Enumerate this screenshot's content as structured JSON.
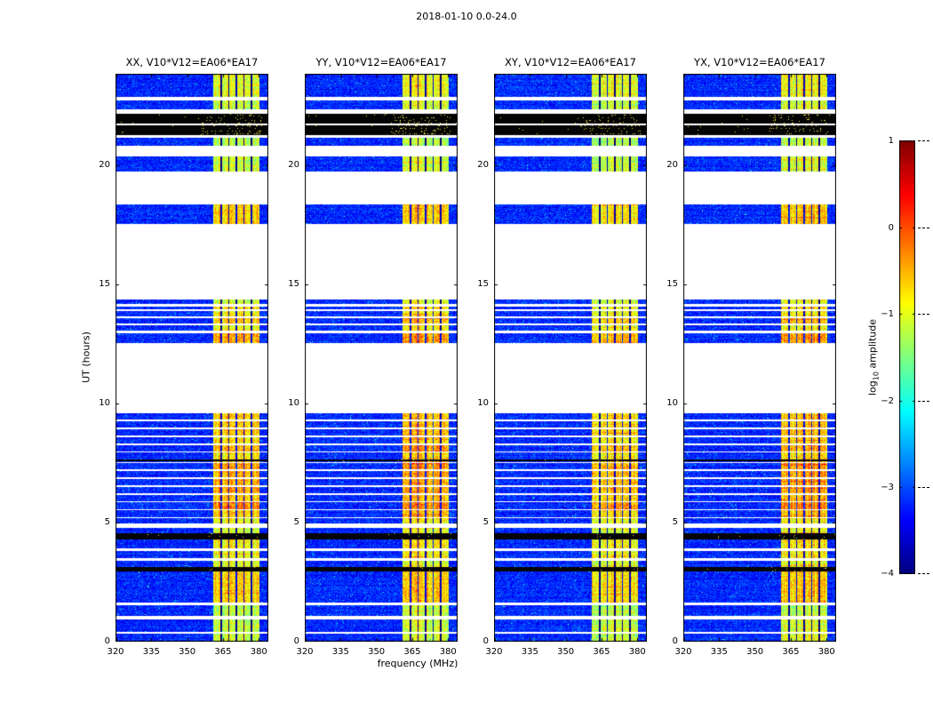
{
  "figure": {
    "title": "2018-01-10 0.0-24.0",
    "xlabel": "frequency (MHz)",
    "ylabel": "UT (hours)"
  },
  "chart_data": {
    "type": "heatmap",
    "title": "2018-01-10 0.0-24.0",
    "xlabel": "frequency (MHz)",
    "ylabel": "UT (hours)",
    "x_range_mhz": [
      320,
      384
    ],
    "y_range_hours": [
      0,
      23.84
    ],
    "x_ticks": [
      320,
      335,
      350,
      365,
      380
    ],
    "y_ticks": [
      0,
      5,
      10,
      15,
      20
    ],
    "colormap": "jet",
    "background_level": -3.2,
    "colorbar": {
      "label": "log10 amplitude",
      "label_main": "log",
      "label_sub": "10",
      "label_rest": " amplitude",
      "ticks": [
        1,
        0,
        -1,
        -2,
        -3,
        -4
      ],
      "range": [
        -4,
        1
      ]
    },
    "panels": [
      {
        "title": "XX, V10*V12=EA06*EA17",
        "band_gain": 1.0
      },
      {
        "title": "YY, V10*V12=EA06*EA17",
        "band_gain": 1.06
      },
      {
        "title": "XY, V10*V12=EA06*EA17",
        "band_gain": 0.94
      },
      {
        "title": "YX, V10*V12=EA06*EA17",
        "band_gain": 1.0
      }
    ],
    "rfi_band_mhz": [
      361,
      380.4
    ],
    "band_separators_mhz": [
      364.2,
      367.4,
      370.6,
      373.8,
      377.0
    ],
    "segments": [
      {
        "t0": 0.0,
        "t1": 0.33,
        "kind": "data",
        "i": 0.55
      },
      {
        "t0": 0.33,
        "t1": 0.41,
        "kind": "white"
      },
      {
        "t0": 0.41,
        "t1": 0.95,
        "kind": "data",
        "i": 0.55
      },
      {
        "t0": 0.95,
        "t1": 1.1,
        "kind": "white"
      },
      {
        "t0": 1.1,
        "t1": 1.52,
        "kind": "data",
        "i": 0.5
      },
      {
        "t0": 1.52,
        "t1": 1.63,
        "kind": "white"
      },
      {
        "t0": 1.63,
        "t1": 2.95,
        "kind": "data",
        "i": 0.75
      },
      {
        "t0": 2.95,
        "t1": 3.12,
        "kind": "black"
      },
      {
        "t0": 3.12,
        "t1": 3.38,
        "kind": "data",
        "i": 0.6
      },
      {
        "t0": 3.38,
        "t1": 3.5,
        "kind": "white"
      },
      {
        "t0": 3.5,
        "t1": 3.82,
        "kind": "data",
        "i": 0.65
      },
      {
        "t0": 3.82,
        "t1": 3.92,
        "kind": "white"
      },
      {
        "t0": 3.92,
        "t1": 4.3,
        "kind": "data",
        "i": 0.7
      },
      {
        "t0": 4.3,
        "t1": 4.56,
        "kind": "black"
      },
      {
        "t0": 4.56,
        "t1": 4.78,
        "kind": "data",
        "i": 0.6
      },
      {
        "t0": 4.78,
        "t1": 4.95,
        "kind": "white"
      },
      {
        "t0": 4.95,
        "t1": 5.18,
        "kind": "data",
        "i": 0.65
      },
      {
        "t0": 5.18,
        "t1": 5.24,
        "kind": "white"
      },
      {
        "t0": 5.24,
        "t1": 7.58,
        "kind": "striped",
        "i": 0.85,
        "row": 0.27,
        "gap": 0.06
      },
      {
        "t0": 7.58,
        "t1": 7.66,
        "kind": "black"
      },
      {
        "t0": 7.66,
        "t1": 9.62,
        "kind": "striped",
        "i": 0.78,
        "row": 0.27,
        "gap": 0.06
      },
      {
        "t0": 9.62,
        "t1": 12.55,
        "kind": "white"
      },
      {
        "t0": 12.55,
        "t1": 12.95,
        "kind": "data",
        "i": 0.85
      },
      {
        "t0": 12.95,
        "t1": 13.04,
        "kind": "white"
      },
      {
        "t0": 13.04,
        "t1": 14.06,
        "kind": "striped",
        "i": 0.72,
        "row": 0.24,
        "gap": 0.06
      },
      {
        "t0": 14.06,
        "t1": 14.16,
        "kind": "white"
      },
      {
        "t0": 14.16,
        "t1": 14.38,
        "kind": "data",
        "i": 0.58
      },
      {
        "t0": 14.38,
        "t1": 17.55,
        "kind": "white"
      },
      {
        "t0": 17.55,
        "t1": 18.36,
        "kind": "data",
        "i": 0.75
      },
      {
        "t0": 18.36,
        "t1": 19.72,
        "kind": "white"
      },
      {
        "t0": 19.72,
        "t1": 20.38,
        "kind": "data",
        "i": 0.55
      },
      {
        "t0": 20.38,
        "t1": 20.8,
        "kind": "white"
      },
      {
        "t0": 20.8,
        "t1": 21.16,
        "kind": "data",
        "i": 0.5
      },
      {
        "t0": 21.16,
        "t1": 21.27,
        "kind": "white"
      },
      {
        "t0": 21.27,
        "t1": 21.68,
        "kind": "black_speckled"
      },
      {
        "t0": 21.68,
        "t1": 21.75,
        "kind": "white"
      },
      {
        "t0": 21.75,
        "t1": 22.16,
        "kind": "black_speckled"
      },
      {
        "t0": 22.16,
        "t1": 22.35,
        "kind": "white"
      },
      {
        "t0": 22.35,
        "t1": 22.72,
        "kind": "data",
        "i": 0.55
      },
      {
        "t0": 22.72,
        "t1": 22.87,
        "kind": "white"
      },
      {
        "t0": 22.87,
        "t1": 23.84,
        "kind": "data",
        "i": 0.62
      }
    ]
  }
}
